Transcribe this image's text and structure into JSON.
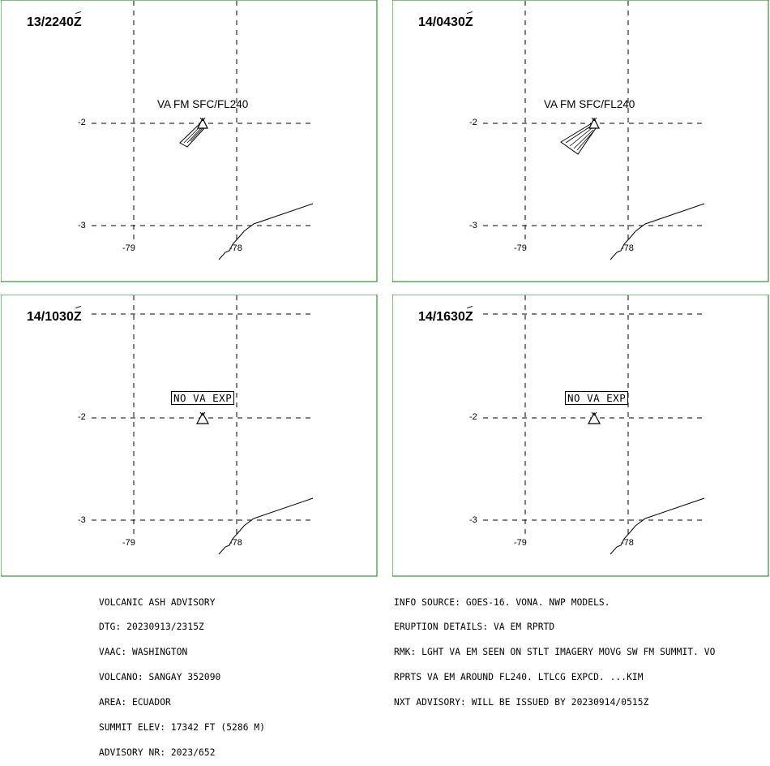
{
  "colors": {
    "frame": "#008000",
    "lines": "#000000"
  },
  "panels": [
    {
      "time": "13/2240",
      "zulu": "Z",
      "ash_label": "VA FM SFC/FL240",
      "nova_label": ""
    },
    {
      "time": "14/0430",
      "zulu": "Z",
      "ash_label": "VA FM SFC/FL240",
      "nova_label": ""
    },
    {
      "time": "14/1030",
      "zulu": "Z",
      "ash_label": "",
      "nova_label": "NO VA EXP"
    },
    {
      "time": "14/1630",
      "zulu": "Z",
      "ash_label": "",
      "nova_label": "NO VA EXP"
    }
  ],
  "axis": {
    "lat_labels": [
      "-2",
      "-3"
    ],
    "lon_labels": [
      "-79",
      "-78"
    ]
  },
  "advisory_left": [
    "VOLCANIC ASH ADVISORY",
    "DTG: 20230913/2315Z",
    "VAAC: WASHINGTON",
    "VOLCANO: SANGAY 352090",
    "AREA: ECUADOR",
    "SUMMIT ELEV: 17342 FT (5286 M)",
    "ADVISORY NR: 2023/652"
  ],
  "advisory_right": [
    "INFO SOURCE: GOES-16. VONA. NWP MODELS.",
    "ERUPTION DETAILS: VA EM RPRTD",
    "RMK: LGHT VA EM SEEN ON STLT IMAGERY MOVG SW FM SUMMIT. VO",
    "RPRTS VA EM AROUND FL240. LTLCG EXPCD. ...KIM",
    "NXT ADVISORY: WILL BE ISSUED BY 20230914/0515Z"
  ]
}
